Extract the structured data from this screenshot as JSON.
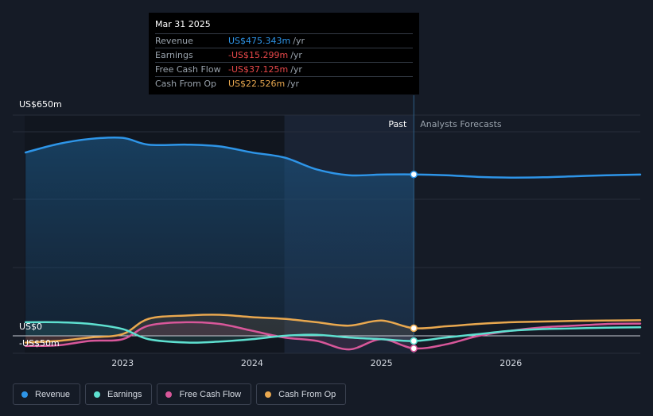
{
  "chart_data": {
    "type": "line",
    "title": "",
    "xlabel": "",
    "ylabel": "",
    "x_ticks": [
      "2023",
      "2024",
      "2025",
      "2026"
    ],
    "y_labels": [
      "US$650m",
      "US$0",
      "-US$50m"
    ],
    "ylim": [
      -50,
      650
    ],
    "sections": {
      "past": "Past",
      "forecast": "Analysts Forecasts"
    },
    "series": [
      {
        "name": "Revenue",
        "color": "#2e95e8",
        "fill": true,
        "points": [
          [
            2022.25,
            540
          ],
          [
            2022.5,
            565
          ],
          [
            2022.75,
            580
          ],
          [
            2023.0,
            583
          ],
          [
            2023.2,
            563
          ],
          [
            2023.5,
            563
          ],
          [
            2023.75,
            558
          ],
          [
            2024.0,
            540
          ],
          [
            2024.25,
            525
          ],
          [
            2024.5,
            490
          ],
          [
            2024.75,
            473
          ],
          [
            2025.0,
            475
          ],
          [
            2025.25,
            475.3
          ],
          [
            2025.5,
            473
          ],
          [
            2025.75,
            468
          ],
          [
            2026.0,
            466
          ],
          [
            2026.25,
            467
          ],
          [
            2026.5,
            470
          ],
          [
            2026.75,
            473
          ],
          [
            2027.0,
            475
          ]
        ]
      },
      {
        "name": "Earnings",
        "color": "#5ee0d0",
        "points": [
          [
            2022.25,
            40
          ],
          [
            2022.5,
            40
          ],
          [
            2022.75,
            35
          ],
          [
            2023.0,
            20
          ],
          [
            2023.2,
            -10
          ],
          [
            2023.5,
            -20
          ],
          [
            2023.75,
            -17
          ],
          [
            2024.0,
            -10
          ],
          [
            2024.25,
            0
          ],
          [
            2024.5,
            3
          ],
          [
            2024.75,
            -5
          ],
          [
            2025.0,
            -10
          ],
          [
            2025.25,
            -15.3
          ],
          [
            2025.5,
            -5
          ],
          [
            2025.75,
            5
          ],
          [
            2026.0,
            15
          ],
          [
            2026.25,
            20
          ],
          [
            2026.5,
            22
          ],
          [
            2026.75,
            24
          ],
          [
            2027.0,
            25
          ]
        ]
      },
      {
        "name": "Free Cash Flow",
        "color": "#d8579a",
        "points": [
          [
            2022.25,
            -30
          ],
          [
            2022.5,
            -28
          ],
          [
            2022.75,
            -15
          ],
          [
            2023.0,
            -10
          ],
          [
            2023.2,
            30
          ],
          [
            2023.5,
            40
          ],
          [
            2023.75,
            35
          ],
          [
            2024.0,
            15
          ],
          [
            2024.25,
            -5
          ],
          [
            2024.5,
            -15
          ],
          [
            2024.75,
            -40
          ],
          [
            2025.0,
            -10
          ],
          [
            2025.25,
            -37.1
          ],
          [
            2025.5,
            -25
          ],
          [
            2025.75,
            0
          ],
          [
            2026.0,
            15
          ],
          [
            2026.25,
            25
          ],
          [
            2026.5,
            30
          ],
          [
            2026.75,
            35
          ],
          [
            2027.0,
            36
          ]
        ]
      },
      {
        "name": "Cash From Op",
        "color": "#e9a84f",
        "points": [
          [
            2022.25,
            -20
          ],
          [
            2022.5,
            -15
          ],
          [
            2022.75,
            -5
          ],
          [
            2023.0,
            5
          ],
          [
            2023.2,
            50
          ],
          [
            2023.5,
            60
          ],
          [
            2023.75,
            62
          ],
          [
            2024.0,
            55
          ],
          [
            2024.25,
            50
          ],
          [
            2024.5,
            40
          ],
          [
            2024.75,
            30
          ],
          [
            2025.0,
            45
          ],
          [
            2025.25,
            22.5
          ],
          [
            2025.5,
            28
          ],
          [
            2025.75,
            35
          ],
          [
            2026.0,
            40
          ],
          [
            2026.25,
            42
          ],
          [
            2026.5,
            44
          ],
          [
            2026.75,
            45
          ],
          [
            2027.0,
            46
          ]
        ]
      }
    ]
  },
  "tooltip": {
    "date": "Mar 31 2025",
    "rows": [
      {
        "label": "Revenue",
        "value": "US$475.343m",
        "unit": "/yr",
        "color": "#2e95e8"
      },
      {
        "label": "Earnings",
        "value": "-US$15.299m",
        "unit": "/yr",
        "color": "#e8484a"
      },
      {
        "label": "Free Cash Flow",
        "value": "-US$37.125m",
        "unit": "/yr",
        "color": "#e8484a"
      },
      {
        "label": "Cash From Op",
        "value": "US$22.526m",
        "unit": "/yr",
        "color": "#e9a84f"
      }
    ]
  },
  "legend": [
    {
      "label": "Revenue",
      "color": "#2e95e8"
    },
    {
      "label": "Earnings",
      "color": "#5ee0d0"
    },
    {
      "label": "Free Cash Flow",
      "color": "#d8579a"
    },
    {
      "label": "Cash From Op",
      "color": "#e9a84f"
    }
  ]
}
